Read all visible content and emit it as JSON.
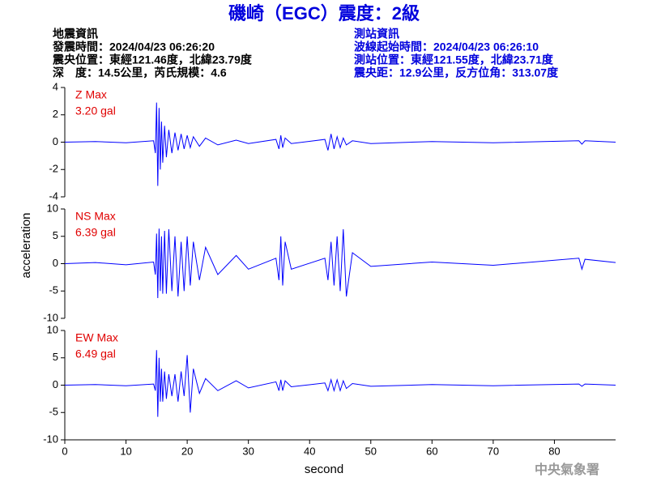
{
  "header": {
    "title": "磯崎（EGC）震度：2級",
    "left": [
      "地震資訊",
      "發震時間：2024/04/23 06:26:20",
      "震央位置：東經121.46度，北緯23.79度",
      "深　度：14.5公里，芮氏規模：4.6"
    ],
    "right": [
      "測站資訊",
      "波線起始時間：2024/04/23 06:26:10",
      "測站位置：東經121.55度，北緯23.71度",
      "震央距：12.9公里，反方位角：313.07度"
    ]
  },
  "footer": "中央氣象署",
  "chart_data": [
    {
      "type": "line",
      "annotations": [
        "Z Max",
        "3.20 gal"
      ],
      "annotation_color": "#e00000",
      "color": "#0000ff",
      "xlim": [
        0,
        90
      ],
      "ylim": [
        -4,
        4
      ],
      "yticks": [
        4,
        2,
        0,
        -2,
        -4
      ],
      "x": [
        0,
        5,
        10,
        14.5,
        14.8,
        15.0,
        15.2,
        15.4,
        15.6,
        15.8,
        16,
        16.3,
        16.6,
        17,
        17.5,
        18,
        18.5,
        19,
        19.5,
        20,
        20.5,
        21,
        22,
        23,
        25,
        28,
        30,
        34.5,
        35,
        35.3,
        35.6,
        36,
        37,
        42.5,
        43,
        43.5,
        44,
        44.5,
        45,
        45.5,
        46,
        47,
        50,
        60,
        70,
        84,
        84.5,
        85,
        90
      ],
      "values": [
        0,
        0.05,
        -0.05,
        0.1,
        -0.8,
        2.9,
        -3.2,
        2.5,
        -2.0,
        1.5,
        -1.5,
        1.2,
        -1.1,
        0.9,
        -0.8,
        0.7,
        -0.6,
        0.6,
        -0.5,
        0.5,
        -0.4,
        0.4,
        -0.3,
        0.3,
        -0.2,
        0.15,
        -0.1,
        0.2,
        -0.5,
        0.5,
        -0.4,
        0.3,
        -0.1,
        0.2,
        -0.6,
        0.6,
        -0.5,
        0.4,
        -0.4,
        0.3,
        -0.2,
        0.1,
        -0.1,
        0.05,
        -0.05,
        0.1,
        -0.15,
        0.1,
        0
      ]
    },
    {
      "type": "line",
      "annotations": [
        "NS Max",
        "6.39 gal"
      ],
      "annotation_color": "#e00000",
      "color": "#0000ff",
      "ylabel": "acceleration",
      "xlim": [
        0,
        90
      ],
      "ylim": [
        -10,
        10
      ],
      "yticks": [
        10,
        5,
        0,
        -5,
        -10
      ],
      "x": [
        0,
        5,
        10,
        14.5,
        14.8,
        15.0,
        15.2,
        15.4,
        15.6,
        15.8,
        16,
        16.3,
        16.6,
        17,
        17.5,
        18,
        18.5,
        19,
        19.5,
        20,
        20.5,
        21,
        22,
        23,
        25,
        28,
        30,
        34.5,
        35,
        35.3,
        35.6,
        36,
        37,
        42.5,
        43,
        43.5,
        44,
        44.5,
        45,
        45.5,
        46,
        47,
        50,
        60,
        70,
        84,
        84.5,
        85,
        90
      ],
      "values": [
        0,
        0.2,
        -0.2,
        0.3,
        -2,
        5.5,
        -6.3,
        6.4,
        -5,
        5,
        -5.5,
        6,
        -5.5,
        6.3,
        -5,
        5,
        -6,
        4,
        -5,
        5,
        -4,
        4,
        -3,
        3,
        -2,
        1.5,
        -1,
        1,
        -3,
        5,
        -4,
        4,
        -1,
        1,
        -3,
        4,
        -4,
        5,
        -5,
        6.3,
        -6,
        2,
        -0.5,
        0.3,
        -0.3,
        1,
        -1,
        0.8,
        0.2
      ]
    },
    {
      "type": "line",
      "annotations": [
        "EW Max",
        "6.49 gal"
      ],
      "annotation_color": "#e00000",
      "color": "#0000ff",
      "xlabel": "second",
      "xlim": [
        0,
        90
      ],
      "ylim": [
        -10,
        10
      ],
      "yticks": [
        10,
        5,
        0,
        -5,
        -10
      ],
      "xticks": [
        0,
        10,
        20,
        30,
        40,
        50,
        60,
        70,
        80
      ],
      "x": [
        0,
        5,
        10,
        14.5,
        14.8,
        15.0,
        15.2,
        15.4,
        15.6,
        15.8,
        16,
        16.3,
        16.6,
        17,
        17.5,
        18,
        18.5,
        19,
        19.5,
        20,
        20.5,
        21,
        22,
        23,
        25,
        28,
        30,
        34.5,
        35,
        35.3,
        35.6,
        36,
        37,
        42.5,
        43,
        43.5,
        44,
        44.5,
        45,
        45.5,
        46,
        47,
        50,
        60,
        70,
        84,
        84.5,
        85,
        90
      ],
      "values": [
        0,
        0.1,
        -0.1,
        0.2,
        -1,
        6.4,
        -5.8,
        5,
        -3,
        3,
        -3,
        2.5,
        -2.5,
        2,
        -2,
        2,
        -3,
        2.5,
        -2,
        5.5,
        -5,
        3,
        -1.5,
        1.2,
        -1,
        0.8,
        -0.5,
        0.6,
        -1,
        1,
        -1,
        0.8,
        -0.3,
        0.4,
        -1,
        1,
        -1,
        1,
        -1,
        0.8,
        -0.6,
        0.3,
        -0.2,
        0.1,
        -0.1,
        0.2,
        -0.2,
        0.2,
        0
      ]
    }
  ]
}
